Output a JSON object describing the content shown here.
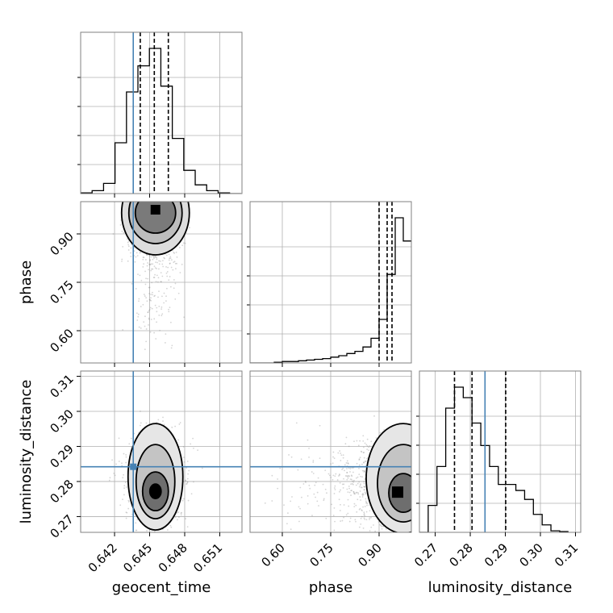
{
  "chart_data": {
    "type": "corner",
    "grid": true,
    "parameters": [
      "geocent_time",
      "phase",
      "luminosity_distance"
    ],
    "truths": {
      "geocent_time": 0.6436,
      "phase": null,
      "luminosity_distance": 0.2842
    },
    "quantiles": {
      "geocent_time": [
        0.6442,
        0.6454,
        0.6466
      ],
      "phase": [
        0.9,
        0.925,
        0.94
      ],
      "luminosity_distance": [
        0.2755,
        0.2805,
        0.2901
      ]
    },
    "axis_ranges": {
      "geocent_time": [
        0.6391,
        0.6529
      ],
      "phase": [
        0.5,
        1.0
      ],
      "luminosity_distance": [
        0.2655,
        0.3115
      ]
    },
    "ticks": {
      "geocent_time": [
        "0.642",
        "0.645",
        "0.648",
        "0.651"
      ],
      "phase": [
        "0.60",
        "0.75",
        "0.90"
      ],
      "luminosity_distance": [
        "0.27",
        "0.28",
        "0.29",
        "0.30",
        "0.31"
      ]
    },
    "tick_values": {
      "geocent_time": [
        0.642,
        0.645,
        0.648,
        0.651
      ],
      "phase": [
        0.6,
        0.75,
        0.9
      ],
      "luminosity_distance": [
        0.27,
        0.28,
        0.29,
        0.3,
        0.31
      ]
    },
    "histograms": {
      "geocent_time": {
        "edges": [
          0.6391,
          0.64008,
          0.64106,
          0.64204,
          0.64302,
          0.644,
          0.64498,
          0.64596,
          0.64694,
          0.64792,
          0.6489,
          0.64988,
          0.65086,
          0.65184,
          0.65282
        ],
        "counts": [
          0.5,
          2,
          7,
          35,
          70,
          88,
          100,
          74,
          38,
          16,
          6,
          2,
          0.5,
          0
        ]
      },
      "phase": {
        "edges": [
          0.5,
          0.525,
          0.55,
          0.575,
          0.6,
          0.625,
          0.65,
          0.675,
          0.7,
          0.725,
          0.75,
          0.775,
          0.8,
          0.825,
          0.85,
          0.875,
          0.9,
          0.925,
          0.95,
          0.975,
          1.0
        ],
        "counts": [
          0,
          0,
          0,
          0.5,
          1,
          1,
          1.5,
          2,
          2.5,
          3,
          4,
          5,
          6.5,
          8,
          11,
          17,
          30,
          61,
          100,
          84
        ]
      },
      "luminosity_distance": {
        "edges": [
          0.2655,
          0.268,
          0.2705,
          0.273,
          0.2755,
          0.278,
          0.2805,
          0.283,
          0.2855,
          0.288,
          0.2905,
          0.293,
          0.2955,
          0.298,
          0.3005,
          0.303,
          0.3055,
          0.308
        ],
        "counts": [
          0,
          18,
          44,
          83,
          97,
          90,
          73,
          58,
          44,
          32,
          32,
          28,
          22,
          12,
          5,
          1,
          0.5
        ]
      }
    }
  }
}
